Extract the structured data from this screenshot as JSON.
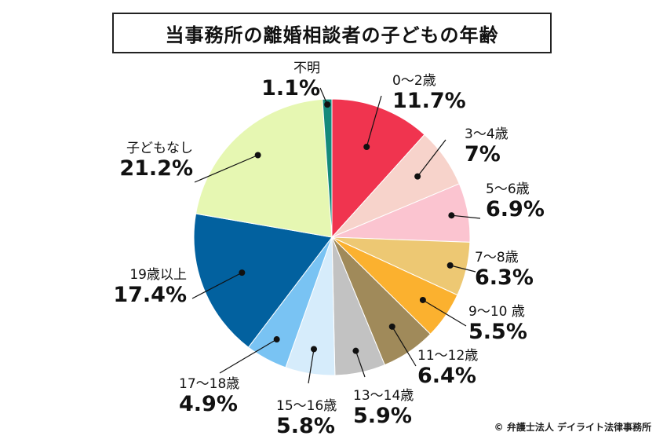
{
  "chart_data": {
    "type": "pie",
    "title": "当事務所の離婚相談者の子どもの年齢",
    "start": "top",
    "direction": "clockwise",
    "slices": [
      {
        "label": "0〜2歳",
        "value_label": "11.7%",
        "value": 11.7,
        "color": "#f0344f"
      },
      {
        "label": "3〜4歳",
        "value_label": "7%",
        "value": 7.0,
        "color": "#f7d3cb"
      },
      {
        "label": "5〜6歳",
        "value_label": "6.9%",
        "value": 6.9,
        "color": "#fbc4d0"
      },
      {
        "label": "7〜8歳",
        "value_label": "6.3%",
        "value": 6.3,
        "color": "#edc873"
      },
      {
        "label": "9〜10 歳",
        "value_label": "5.5%",
        "value": 5.5,
        "color": "#fbb12f"
      },
      {
        "label": "11〜12歳",
        "value_label": "6.4%",
        "value": 6.4,
        "color": "#a08a5a"
      },
      {
        "label": "13〜14歳",
        "value_label": "5.9%",
        "value": 5.9,
        "color": "#c2c2c2"
      },
      {
        "label": "15〜16歳",
        "value_label": "5.8%",
        "value": 5.8,
        "color": "#d6ecfb"
      },
      {
        "label": "17〜18歳",
        "value_label": "4.9%",
        "value": 4.9,
        "color": "#79c3f3"
      },
      {
        "label": "19歳以上",
        "value_label": "17.4%",
        "value": 17.4,
        "color": "#02619f"
      },
      {
        "label": "子どもなし",
        "value_label": "21.2%",
        "value": 21.2,
        "color": "#e6f7b2"
      },
      {
        "label": "不明",
        "value_label": "1.1%",
        "value": 1.1,
        "color": "#148a7b"
      }
    ]
  },
  "copyright": "© 弁護士法人 デイライト法律事務所"
}
